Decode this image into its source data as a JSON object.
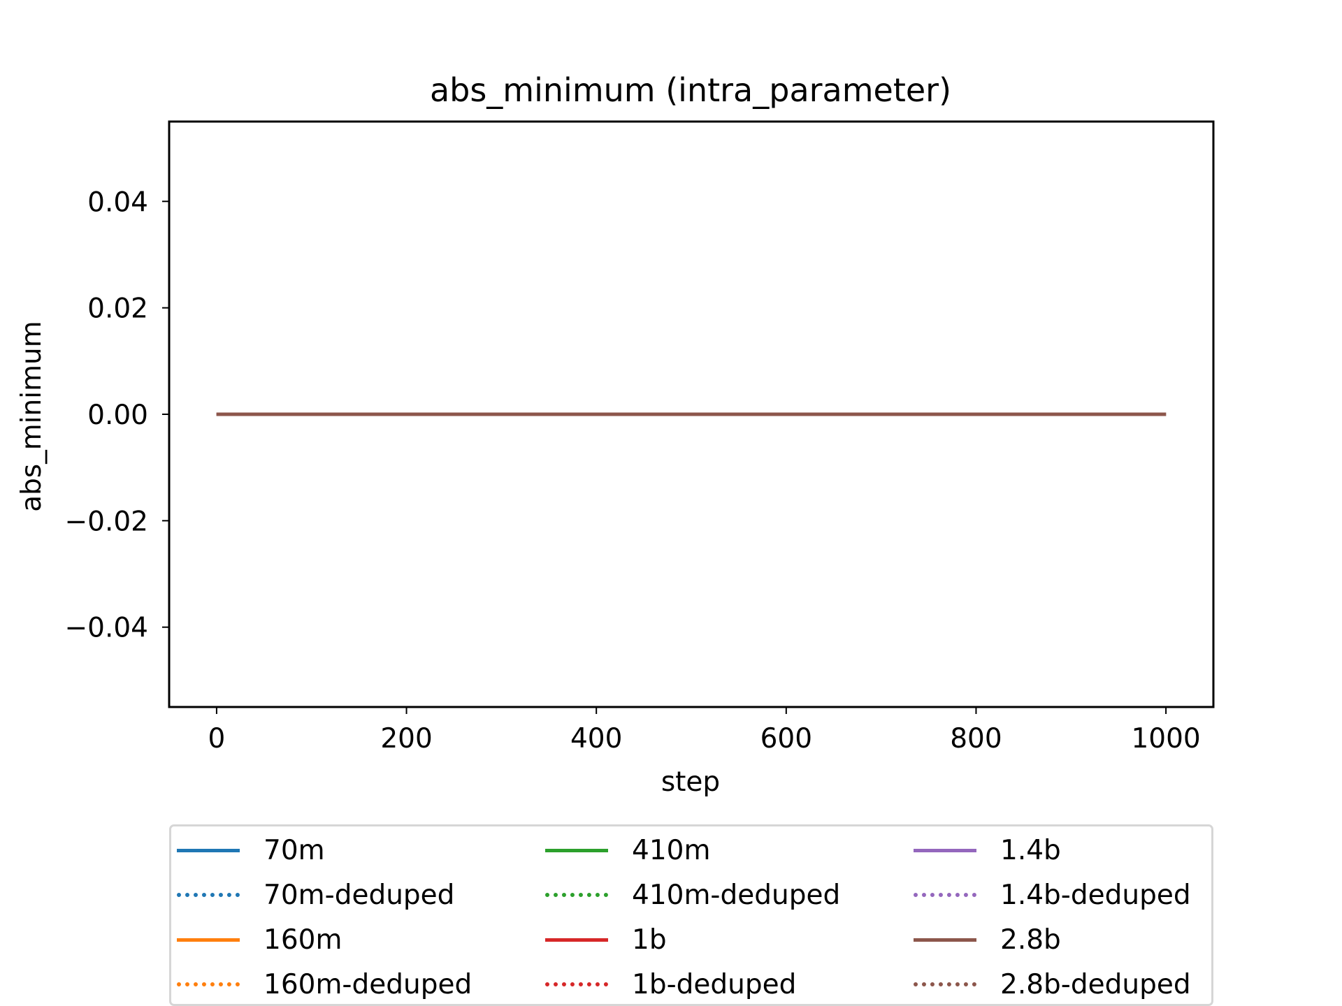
{
  "chart_data": {
    "type": "line",
    "title": "abs_minimum (intra_parameter)",
    "xlabel": "step",
    "ylabel": "abs_minimum",
    "xlim": [
      -50,
      1050
    ],
    "ylim": [
      -0.055,
      0.055
    ],
    "xticks": [
      0,
      200,
      400,
      600,
      800,
      1000
    ],
    "xtick_labels": [
      "0",
      "200",
      "400",
      "600",
      "800",
      "1000"
    ],
    "yticks": [
      -0.04,
      -0.02,
      0.0,
      0.02,
      0.04
    ],
    "ytick_labels": [
      "−0.04",
      "−0.02",
      "0.00",
      "0.02",
      "0.04"
    ],
    "grid": false,
    "legend_position": "below",
    "x": [
      0,
      1000
    ],
    "series": [
      {
        "name": "70m",
        "color": "#1f77b4",
        "style": "solid",
        "values": [
          0.0,
          0.0
        ]
      },
      {
        "name": "70m-deduped",
        "color": "#1f77b4",
        "style": "dotted",
        "values": [
          0.0,
          0.0
        ]
      },
      {
        "name": "160m",
        "color": "#ff7f0e",
        "style": "solid",
        "values": [
          0.0,
          0.0
        ]
      },
      {
        "name": "160m-deduped",
        "color": "#ff7f0e",
        "style": "dotted",
        "values": [
          0.0,
          0.0
        ]
      },
      {
        "name": "410m",
        "color": "#2ca02c",
        "style": "solid",
        "values": [
          0.0,
          0.0
        ]
      },
      {
        "name": "410m-deduped",
        "color": "#2ca02c",
        "style": "dotted",
        "values": [
          0.0,
          0.0
        ]
      },
      {
        "name": "1b",
        "color": "#d62728",
        "style": "solid",
        "values": [
          0.0,
          0.0
        ]
      },
      {
        "name": "1b-deduped",
        "color": "#d62728",
        "style": "dotted",
        "values": [
          0.0,
          0.0
        ]
      },
      {
        "name": "1.4b",
        "color": "#9467bd",
        "style": "solid",
        "values": [
          0.0,
          0.0
        ]
      },
      {
        "name": "1.4b-deduped",
        "color": "#9467bd",
        "style": "dotted",
        "values": [
          0.0,
          0.0
        ]
      },
      {
        "name": "2.8b",
        "color": "#8c564b",
        "style": "solid",
        "values": [
          0.0,
          0.0
        ]
      },
      {
        "name": "2.8b-deduped",
        "color": "#8c564b",
        "style": "dotted",
        "values": [
          0.0,
          0.0
        ]
      }
    ]
  }
}
